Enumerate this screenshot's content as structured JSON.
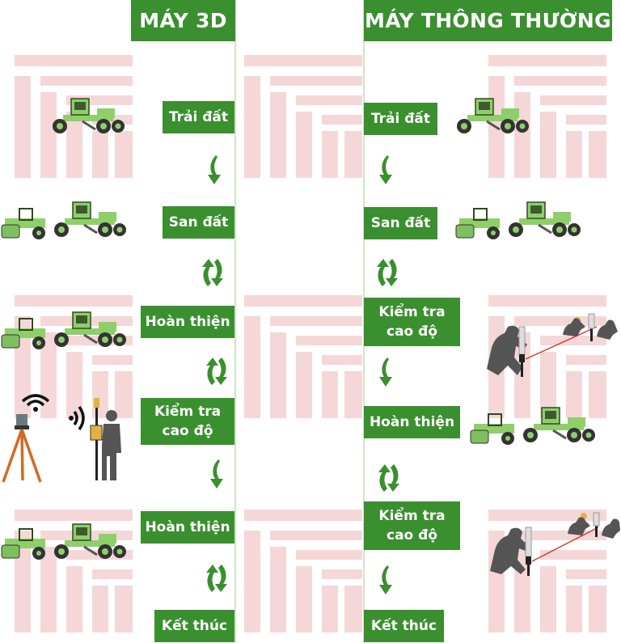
{
  "colors": {
    "accent": "#3a8f2f",
    "watermark": "#f4d4d4",
    "machine": "#8ecf6a"
  },
  "left": {
    "title": "MÁY 3D",
    "steps": [
      "Trải đất",
      "San đất",
      "Hoàn thiện",
      "Kiểm tra\ncao độ",
      "Hoàn thiện",
      "Kết thúc"
    ]
  },
  "right": {
    "title": "MÁY THÔNG THƯỜNG",
    "steps": [
      "Trải đất",
      "San đất",
      "Kiểm tra\ncao độ",
      "Hoàn thiện",
      "Kiểm tra\ncao độ",
      "Kết thúc"
    ]
  },
  "icons": [
    "grader-icon",
    "roller-icon",
    "tripod-icon",
    "wifi-icon",
    "surveyor-icon",
    "level-staff-icon",
    "down-arrow-icon",
    "cycle-arrow-icon",
    "watermark-logo"
  ]
}
